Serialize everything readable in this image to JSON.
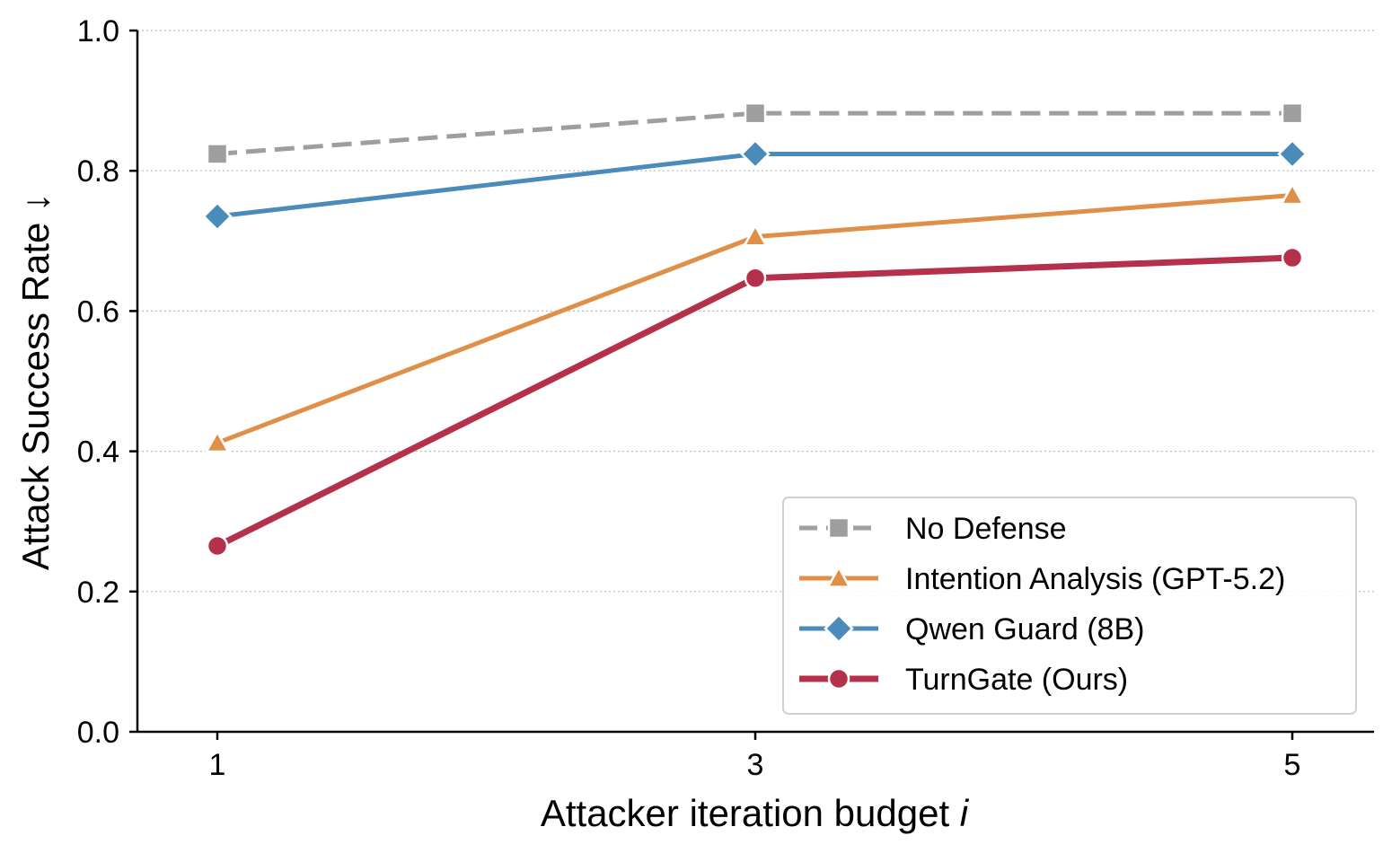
{
  "chart_data": {
    "type": "line",
    "xlabel": "Attacker iteration budget",
    "xlabel_var": "i",
    "ylabel": "Attack Success Rate ↓",
    "x": [
      1,
      3,
      5
    ],
    "x_ticks": [
      "1",
      "3",
      "5"
    ],
    "y_ticks": [
      "0.0",
      "0.2",
      "0.4",
      "0.6",
      "0.8",
      "1.0"
    ],
    "ylim": [
      0,
      1
    ],
    "grid": "horizontal dotted",
    "legend_position": "bottom-right",
    "series": [
      {
        "name": "No Defense",
        "values": [
          0.824,
          0.882,
          0.882
        ],
        "color": "#9e9e9e",
        "marker": "square",
        "dash": true,
        "width": 5
      },
      {
        "name": "Intention Analysis (GPT-5.2)",
        "values": [
          0.412,
          0.706,
          0.765
        ],
        "color": "#df8f47",
        "marker": "triangle",
        "dash": false,
        "width": 5
      },
      {
        "name": "Qwen Guard (8B)",
        "values": [
          0.735,
          0.824,
          0.824
        ],
        "color": "#4a8bba",
        "marker": "diamond",
        "dash": false,
        "width": 5
      },
      {
        "name": "TurnGate (Ours)",
        "values": [
          0.265,
          0.647,
          0.676
        ],
        "color": "#b5304a",
        "marker": "circle",
        "dash": false,
        "width": 7
      }
    ]
  }
}
